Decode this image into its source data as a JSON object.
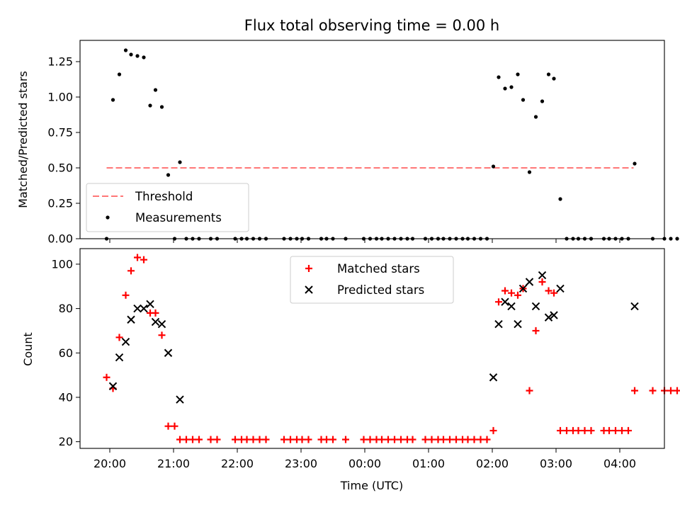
{
  "chart_data": [
    {
      "type": "scatter",
      "title": "Flux total observing time = 0.00 h",
      "ylabel": "Matched/Predicted stars",
      "ylim": [
        0,
        1.4
      ],
      "yticks": [
        "0.00",
        "0.25",
        "0.50",
        "0.75",
        "1.00",
        "1.25"
      ],
      "threshold": {
        "name": "Threshold",
        "value": 0.5,
        "x_start": "19:57",
        "x_end": "04:13",
        "color": "#ff7777"
      },
      "series": [
        {
          "name": "Measurements",
          "color": "#000000",
          "points": [
            [
              "19:57",
              0.0
            ],
            [
              "20:03",
              0.98
            ],
            [
              "20:09",
              1.16
            ],
            [
              "20:15",
              1.33
            ],
            [
              "20:20",
              1.3
            ],
            [
              "20:26",
              1.29
            ],
            [
              "20:32",
              1.28
            ],
            [
              "20:38",
              0.94
            ],
            [
              "20:43",
              1.05
            ],
            [
              "20:49",
              0.93
            ],
            [
              "20:55",
              0.45
            ],
            [
              "21:01",
              0.0
            ],
            [
              "21:06",
              0.54
            ],
            [
              "21:12",
              0.0
            ],
            [
              "21:18",
              0.0
            ],
            [
              "21:24",
              0.0
            ],
            [
              "21:35",
              0.0
            ],
            [
              "21:41",
              0.0
            ],
            [
              "21:58",
              0.0
            ],
            [
              "22:04",
              0.0
            ],
            [
              "22:09",
              0.0
            ],
            [
              "22:15",
              0.0
            ],
            [
              "22:21",
              0.0
            ],
            [
              "22:27",
              0.0
            ],
            [
              "22:44",
              0.0
            ],
            [
              "22:50",
              0.0
            ],
            [
              "22:56",
              0.0
            ],
            [
              "23:01",
              0.0
            ],
            [
              "23:07",
              0.0
            ],
            [
              "23:19",
              0.0
            ],
            [
              "23:24",
              0.0
            ],
            [
              "23:30",
              0.0
            ],
            [
              "23:42",
              0.0
            ],
            [
              "23:59",
              0.0
            ],
            [
              "00:05",
              0.0
            ],
            [
              "00:11",
              0.0
            ],
            [
              "00:16",
              0.0
            ],
            [
              "00:22",
              0.0
            ],
            [
              "00:28",
              0.0
            ],
            [
              "00:34",
              0.0
            ],
            [
              "00:40",
              0.0
            ],
            [
              "00:45",
              0.0
            ],
            [
              "00:57",
              0.0
            ],
            [
              "01:03",
              0.0
            ],
            [
              "01:09",
              0.0
            ],
            [
              "01:14",
              0.0
            ],
            [
              "01:20",
              0.0
            ],
            [
              "01:26",
              0.0
            ],
            [
              "01:32",
              0.0
            ],
            [
              "01:37",
              0.0
            ],
            [
              "01:43",
              0.0
            ],
            [
              "01:49",
              0.0
            ],
            [
              "01:55",
              0.0
            ],
            [
              "02:01",
              0.51
            ],
            [
              "02:06",
              1.14
            ],
            [
              "02:12",
              1.06
            ],
            [
              "02:18",
              1.07
            ],
            [
              "02:24",
              1.16
            ],
            [
              "02:29",
              0.98
            ],
            [
              "02:35",
              0.47
            ],
            [
              "02:41",
              0.86
            ],
            [
              "02:47",
              0.97
            ],
            [
              "02:53",
              1.16
            ],
            [
              "02:58",
              1.13
            ],
            [
              "03:04",
              0.28
            ],
            [
              "03:10",
              0.0
            ],
            [
              "03:16",
              0.0
            ],
            [
              "03:21",
              0.0
            ],
            [
              "03:27",
              0.0
            ],
            [
              "03:33",
              0.0
            ],
            [
              "03:45",
              0.0
            ],
            [
              "03:50",
              0.0
            ],
            [
              "03:56",
              0.0
            ],
            [
              "04:02",
              0.0
            ],
            [
              "04:08",
              0.0
            ],
            [
              "04:14",
              0.53
            ],
            [
              "04:31",
              0.0
            ],
            [
              "04:42",
              0.0
            ],
            [
              "04:48",
              0.0
            ],
            [
              "04:54",
              0.0
            ],
            [
              "05:00",
              0.0
            ],
            [
              "05:05",
              0.0
            ]
          ]
        }
      ],
      "legend": {
        "placement": "lower-left",
        "entries": [
          "Threshold",
          "Measurements"
        ]
      }
    },
    {
      "type": "scatter",
      "xlabel": "Time (UTC)",
      "ylabel": "Count",
      "ylim": [
        17,
        107
      ],
      "yticks": [
        "20",
        "40",
        "60",
        "80",
        "100"
      ],
      "xticks": [
        "20:00",
        "21:00",
        "22:00",
        "23:00",
        "00:00",
        "01:00",
        "02:00",
        "03:00",
        "04:00"
      ],
      "series": [
        {
          "name": "Matched stars",
          "color": "#ff0000",
          "marker": "+",
          "points": [
            [
              "19:57",
              49
            ],
            [
              "20:03",
              44
            ],
            [
              "20:09",
              67
            ],
            [
              "20:15",
              86
            ],
            [
              "20:20",
              97
            ],
            [
              "20:26",
              103
            ],
            [
              "20:32",
              102
            ],
            [
              "20:38",
              78
            ],
            [
              "20:43",
              78
            ],
            [
              "20:49",
              68
            ],
            [
              "20:55",
              27
            ],
            [
              "21:01",
              27
            ],
            [
              "21:06",
              21
            ],
            [
              "21:12",
              21
            ],
            [
              "21:18",
              21
            ],
            [
              "21:24",
              21
            ],
            [
              "21:35",
              21
            ],
            [
              "21:41",
              21
            ],
            [
              "21:58",
              21
            ],
            [
              "22:04",
              21
            ],
            [
              "22:09",
              21
            ],
            [
              "22:15",
              21
            ],
            [
              "22:21",
              21
            ],
            [
              "22:27",
              21
            ],
            [
              "22:44",
              21
            ],
            [
              "22:50",
              21
            ],
            [
              "22:56",
              21
            ],
            [
              "23:01",
              21
            ],
            [
              "23:07",
              21
            ],
            [
              "23:19",
              21
            ],
            [
              "23:24",
              21
            ],
            [
              "23:30",
              21
            ],
            [
              "23:42",
              21
            ],
            [
              "23:59",
              21
            ],
            [
              "00:05",
              21
            ],
            [
              "00:11",
              21
            ],
            [
              "00:16",
              21
            ],
            [
              "00:22",
              21
            ],
            [
              "00:28",
              21
            ],
            [
              "00:34",
              21
            ],
            [
              "00:40",
              21
            ],
            [
              "00:45",
              21
            ],
            [
              "00:57",
              21
            ],
            [
              "01:03",
              21
            ],
            [
              "01:09",
              21
            ],
            [
              "01:14",
              21
            ],
            [
              "01:20",
              21
            ],
            [
              "01:26",
              21
            ],
            [
              "01:32",
              21
            ],
            [
              "01:37",
              21
            ],
            [
              "01:43",
              21
            ],
            [
              "01:49",
              21
            ],
            [
              "01:55",
              21
            ],
            [
              "02:01",
              25
            ],
            [
              "02:06",
              83
            ],
            [
              "02:12",
              88
            ],
            [
              "02:18",
              87
            ],
            [
              "02:24",
              86
            ],
            [
              "02:29",
              89
            ],
            [
              "02:35",
              43
            ],
            [
              "02:41",
              70
            ],
            [
              "02:47",
              92
            ],
            [
              "02:53",
              88
            ],
            [
              "02:58",
              87
            ],
            [
              "03:04",
              25
            ],
            [
              "03:10",
              25
            ],
            [
              "03:16",
              25
            ],
            [
              "03:21",
              25
            ],
            [
              "03:27",
              25
            ],
            [
              "03:33",
              25
            ],
            [
              "03:45",
              25
            ],
            [
              "03:50",
              25
            ],
            [
              "03:56",
              25
            ],
            [
              "04:02",
              25
            ],
            [
              "04:08",
              25
            ],
            [
              "04:14",
              43
            ],
            [
              "04:31",
              43
            ],
            [
              "04:42",
              43
            ],
            [
              "04:48",
              43
            ],
            [
              "04:54",
              43
            ],
            [
              "05:00",
              43
            ],
            [
              "05:05",
              43
            ]
          ]
        },
        {
          "name": "Predicted stars",
          "color": "#000000",
          "marker": "x",
          "points": [
            [
              "20:03",
              45
            ],
            [
              "20:09",
              58
            ],
            [
              "20:15",
              65
            ],
            [
              "20:20",
              75
            ],
            [
              "20:26",
              80
            ],
            [
              "20:32",
              80
            ],
            [
              "20:38",
              82
            ],
            [
              "20:43",
              74
            ],
            [
              "20:49",
              73
            ],
            [
              "20:55",
              60
            ],
            [
              "21:06",
              39
            ],
            [
              "02:01",
              49
            ],
            [
              "02:06",
              73
            ],
            [
              "02:12",
              83
            ],
            [
              "02:18",
              81
            ],
            [
              "02:24",
              73
            ],
            [
              "02:29",
              89
            ],
            [
              "02:35",
              92
            ],
            [
              "02:41",
              81
            ],
            [
              "02:47",
              95
            ],
            [
              "02:53",
              76
            ],
            [
              "02:58",
              77
            ],
            [
              "03:04",
              89
            ],
            [
              "04:14",
              81
            ]
          ]
        }
      ],
      "legend": {
        "placement": "upper-center",
        "entries": [
          "Matched stars",
          "Predicted stars"
        ]
      }
    }
  ]
}
